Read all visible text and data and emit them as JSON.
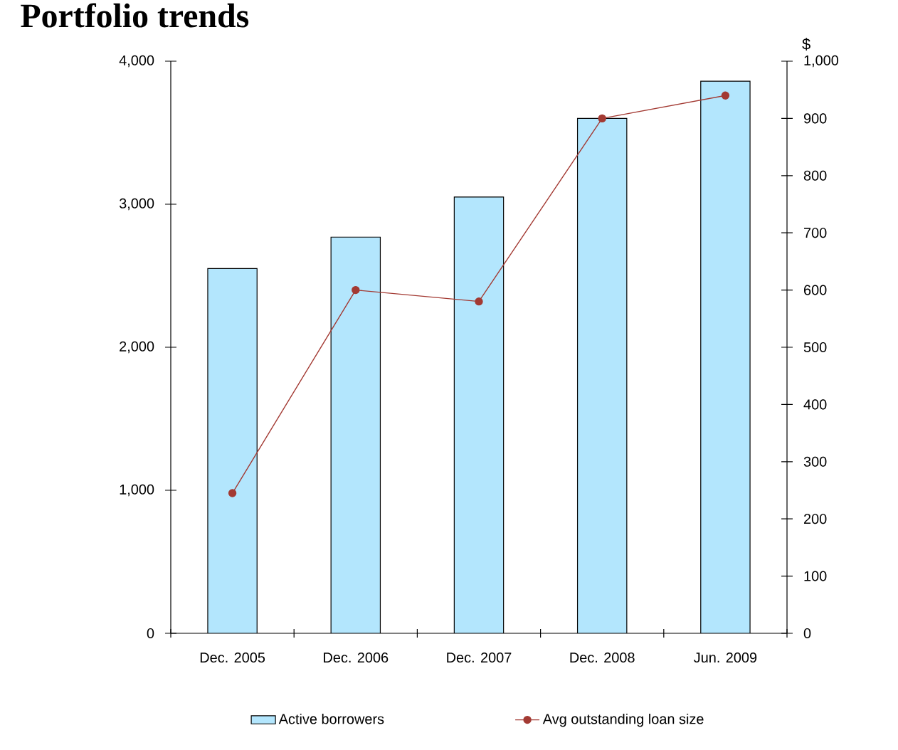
{
  "chart_data": {
    "type": "bar",
    "title": "Portfolio trends",
    "categories": [
      "Dec. 2005",
      "Dec. 2006",
      "Dec. 2007",
      "Dec. 2008",
      "Jun. 2009"
    ],
    "series": [
      {
        "name": "Active borrowers",
        "color": "#b3e6fd",
        "values": [
          2550,
          2770,
          3050,
          3600,
          3860
        ]
      },
      {
        "name": "Avg outstanding loan size",
        "type": "line",
        "axis": "y2",
        "color": "#a33a33",
        "marker": "circle",
        "line_style": "solid",
        "values": [
          245,
          600,
          580,
          900,
          940
        ]
      }
    ],
    "ylim": [
      0,
      4000
    ],
    "yticks": [
      0,
      {
        "value": 1000,
        "label": "1,000"
      },
      {
        "value": 2000,
        "label": "2,000"
      },
      {
        "value": 3000,
        "label": "3,000"
      },
      {
        "value": 4000,
        "label": "4,000"
      }
    ],
    "y2lim": [
      0,
      1000
    ],
    "y2ticks": [
      0,
      100,
      200,
      300,
      400,
      500,
      600,
      700,
      800,
      900,
      {
        "value": 1000,
        "label": "1,000"
      }
    ],
    "y2label": "$",
    "legend": "bottom"
  }
}
